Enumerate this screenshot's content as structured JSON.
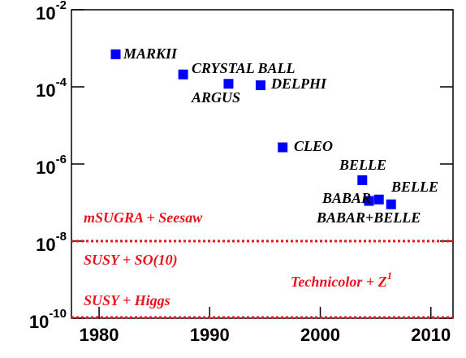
{
  "chart_data": {
    "type": "scatter",
    "log_y": true,
    "color": "#0000ff",
    "line_color": "#e8141e",
    "xlim": [
      1977.5,
      2012
    ],
    "ylim": [
      1e-10,
      0.01
    ],
    "xticks": [
      1980,
      1990,
      2000,
      2010
    ],
    "yticks": [
      {
        "value": 0.01,
        "label": "10",
        "exponent": "-2"
      },
      {
        "value": 0.0001,
        "label": "10",
        "exponent": "-4"
      },
      {
        "value": 1e-06,
        "label": "10",
        "exponent": "-6"
      },
      {
        "value": 1e-08,
        "label": "10",
        "exponent": "-8"
      },
      {
        "value": 1e-10,
        "label": "10",
        "exponent": "-10"
      }
    ],
    "points": [
      {
        "name": "MARKII",
        "x": 1981.5,
        "y": 0.0007
      },
      {
        "name": "CRYSTAL BALL",
        "x": 1987.6,
        "y": 0.00021
      },
      {
        "name": "ARGUS",
        "x": 1991.7,
        "y": 0.00012
      },
      {
        "name": "DELPHI",
        "x": 1994.6,
        "y": 0.00011
      },
      {
        "name": "CLEO",
        "x": 1996.6,
        "y": 2.7e-06
      },
      {
        "name": "BELLE",
        "x": 2003.8,
        "y": 3.8e-07
      },
      {
        "name": "BABAR",
        "x": 2004.4,
        "y": 1.1e-07
      },
      {
        "name": "BELLE",
        "x": 2005.3,
        "y": 1.2e-07
      },
      {
        "name": "BABAR+BELLE",
        "x": 2006.4,
        "y": 9e-08
      }
    ],
    "hlines": [
      1e-08,
      1e-10
    ],
    "annotations": [
      {
        "text": "mSUGRA + Seesaw"
      },
      {
        "text": "SUSY + SO(10)"
      },
      {
        "text": "SUSY + Higgs"
      },
      {
        "text": "Technicolor + Z",
        "sup": "1"
      }
    ]
  }
}
